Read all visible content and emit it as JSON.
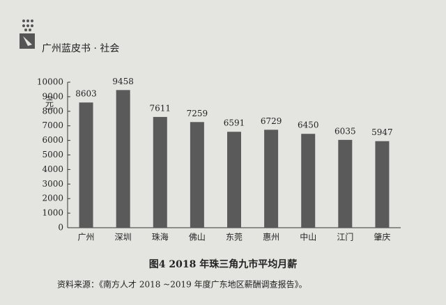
{
  "header": {
    "title": "广州蓝皮书 · 社会"
  },
  "chart_data": {
    "type": "bar",
    "title": "图4 2018 年珠三角九市平均月薪",
    "y_label": "（元）",
    "categories": [
      "广州",
      "深圳",
      "珠海",
      "佛山",
      "东莞",
      "惠州",
      "中山",
      "江门",
      "肇庆"
    ],
    "values": [
      8603,
      9458,
      7611,
      7259,
      6591,
      6729,
      6450,
      6035,
      5947
    ],
    "color": "#5a5a5a",
    "ylim": [
      0,
      10000
    ],
    "yticks": [
      0,
      1000,
      2000,
      3000,
      4000,
      5000,
      6000,
      7000,
      8000,
      9000,
      10000
    ]
  },
  "source": "资料来源：《南方人才 2018 ~2019 年度广东地区薪酬调查报告》。"
}
